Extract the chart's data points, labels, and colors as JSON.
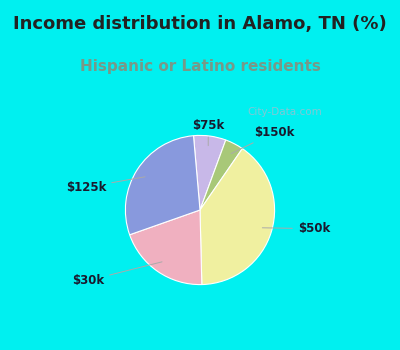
{
  "title": "Income distribution in Alamo, TN (%)",
  "subtitle": "Hispanic or Latino residents",
  "slices": [
    {
      "label": "$75k",
      "value": 7,
      "color": "#c8b8e8"
    },
    {
      "label": "$150k",
      "value": 4,
      "color": "#a8c878"
    },
    {
      "label": "$50k",
      "value": 40,
      "color": "#f0f0a0"
    },
    {
      "label": "$30k",
      "value": 20,
      "color": "#f0b0c0"
    },
    {
      "label": "$125k",
      "value": 29,
      "color": "#8899dd"
    }
  ],
  "background_cyan": "#00f0f0",
  "background_chart": "#e0f0e8",
  "title_color": "#222222",
  "subtitle_color": "#779988",
  "title_fontsize": 13,
  "subtitle_fontsize": 11,
  "watermark": "City-Data.com",
  "startangle": 95
}
